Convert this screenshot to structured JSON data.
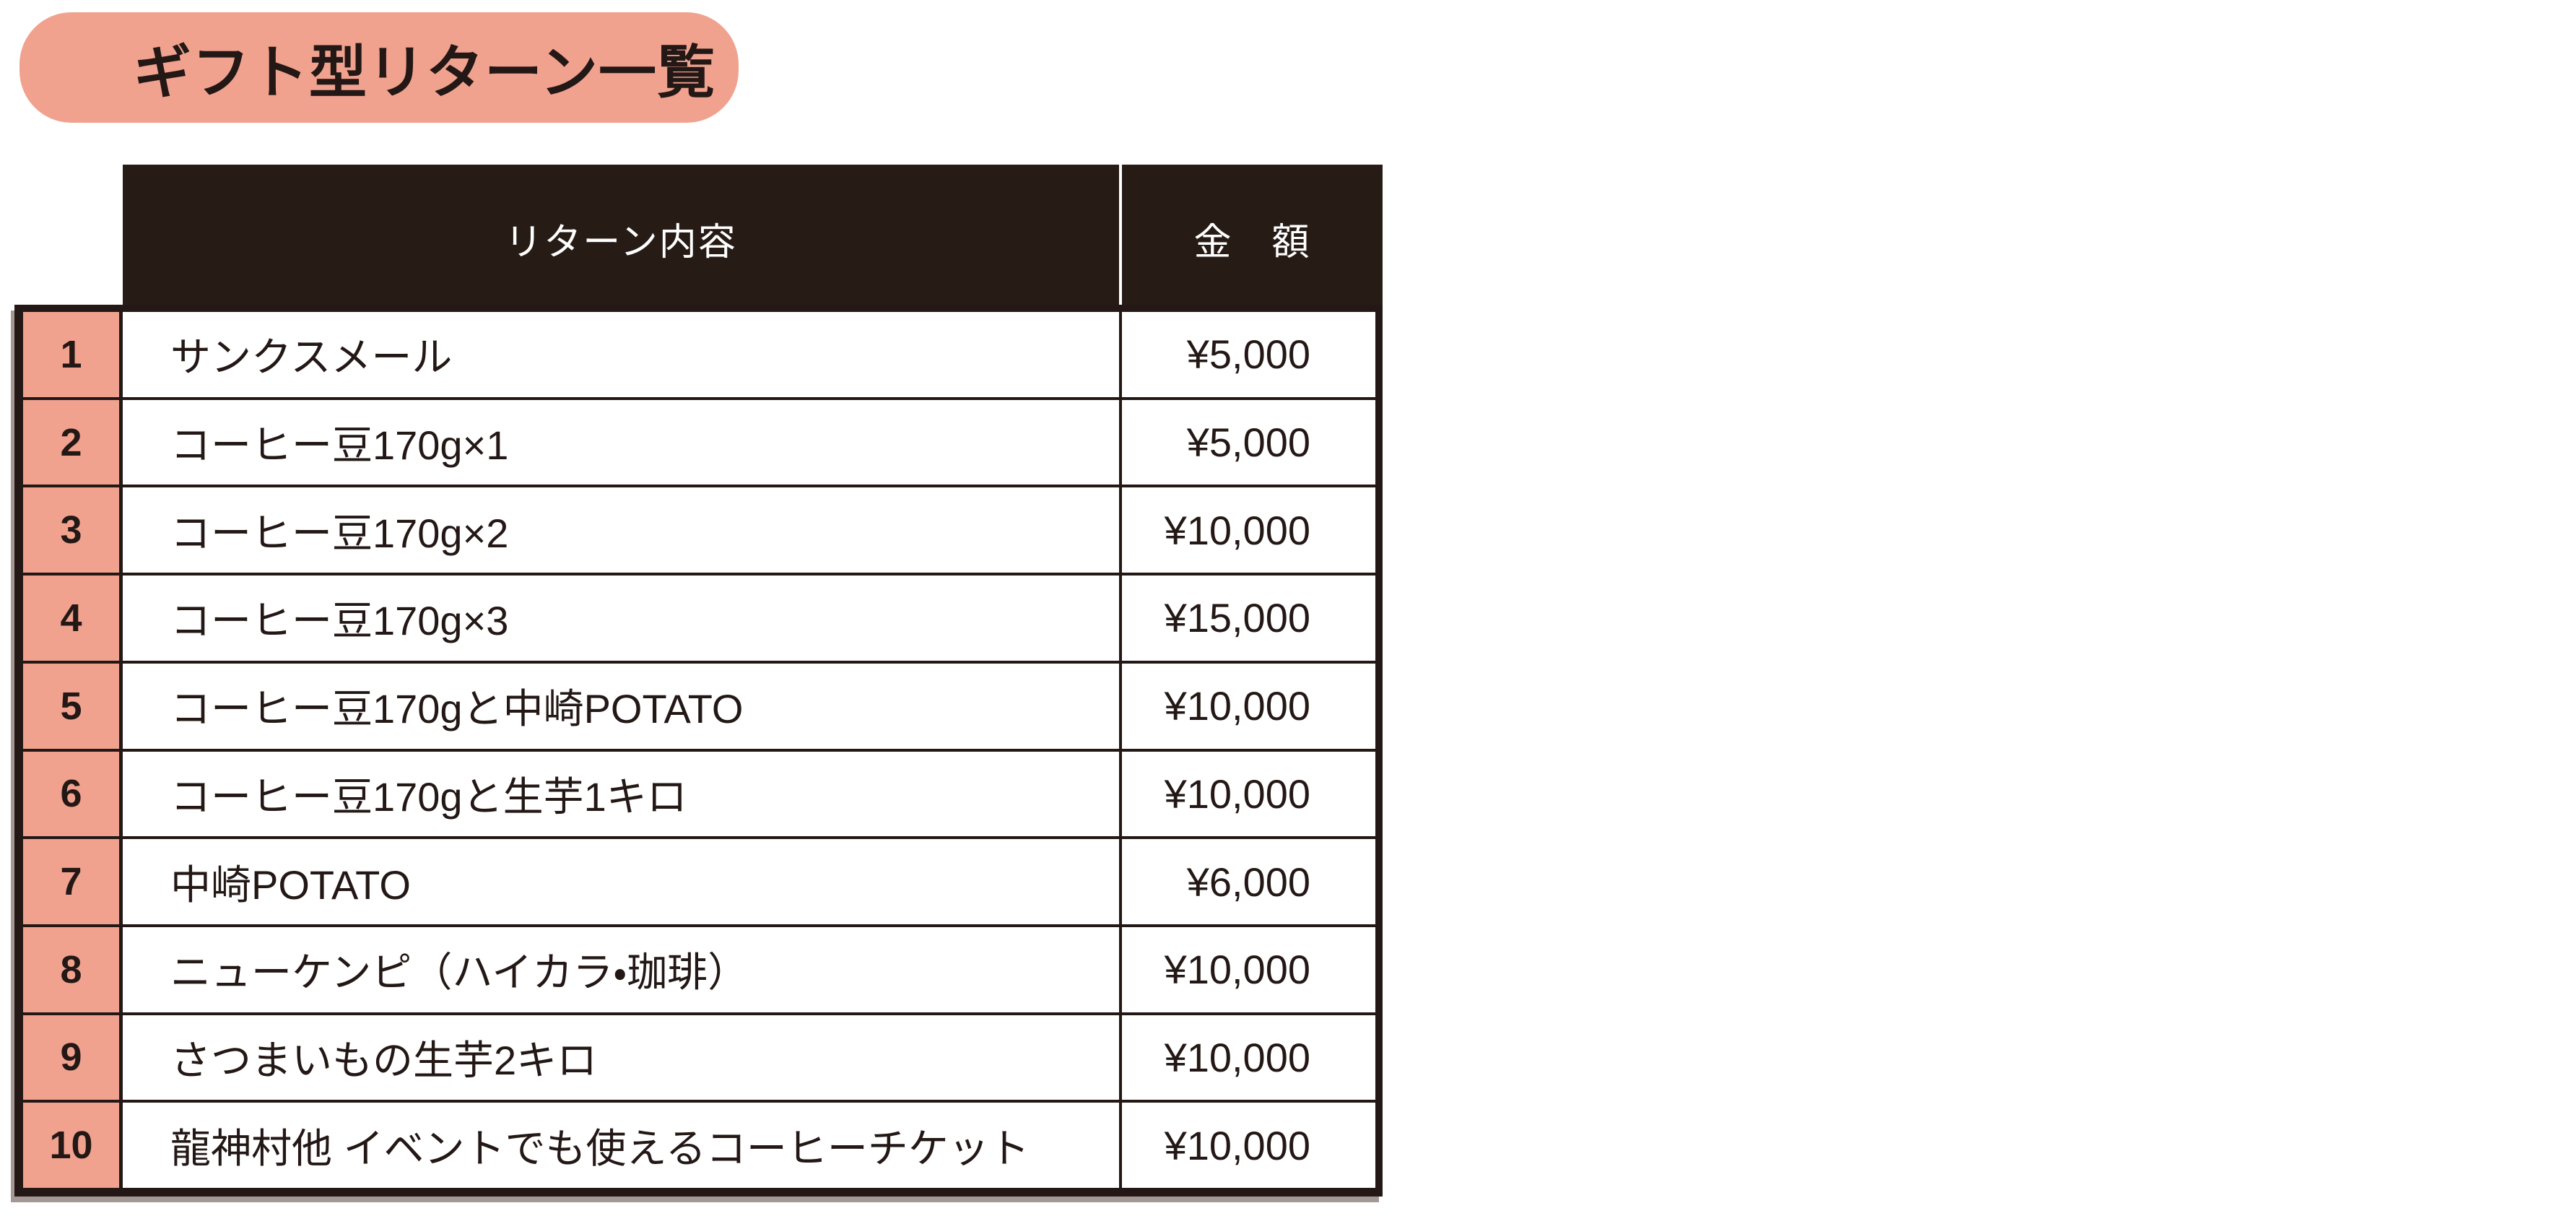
{
  "colors": {
    "paper": "#ffffff",
    "salmon": "#f0a28f",
    "dark": "#271b16",
    "ink": "#231815",
    "shadow": "#a39894"
  },
  "title": {
    "text": "ギフト型リターン一覧"
  },
  "table": {
    "header": {
      "content": "リターン内容",
      "amount": "金　額"
    },
    "rows": [
      {
        "no": "1",
        "content": "サンクスメール",
        "amount": "¥5,000"
      },
      {
        "no": "2",
        "content": "コーヒー豆170g×1",
        "amount": "¥5,000"
      },
      {
        "no": "3",
        "content": "コーヒー豆170g×2",
        "amount": "¥10,000"
      },
      {
        "no": "4",
        "content": "コーヒー豆170g×3",
        "amount": "¥15,000"
      },
      {
        "no": "5",
        "content": "コーヒー豆170gと中崎POTATO",
        "amount": "¥10,000"
      },
      {
        "no": "6",
        "content": "コーヒー豆170gと生芋1キロ",
        "amount": "¥10,000"
      },
      {
        "no": "7",
        "content": "中崎POTATO",
        "amount": "¥6,000"
      },
      {
        "no": "8",
        "content": "ニューケンピ（ハイカラ・珈琲）",
        "amount": "¥10,000"
      },
      {
        "no": "9",
        "content": "さつまいもの生芋2キロ",
        "amount": "¥10,000"
      },
      {
        "no": "10",
        "content": "龍神村他 イベントでも使えるコーヒーチケット",
        "amount": "¥10,000"
      }
    ]
  }
}
